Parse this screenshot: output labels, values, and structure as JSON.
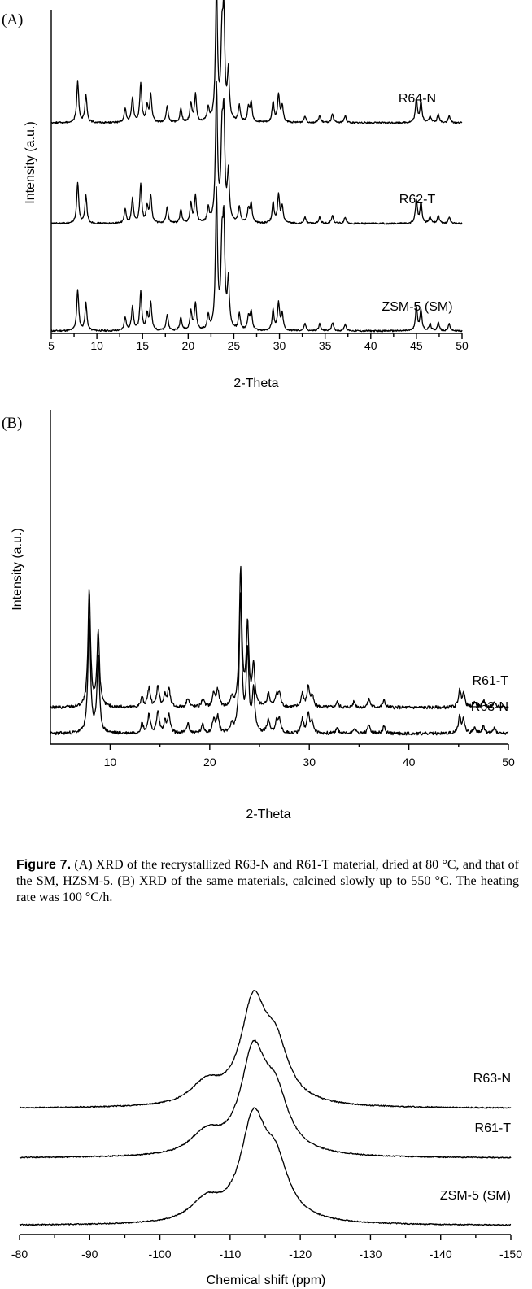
{
  "chart_data": [
    {
      "panel": "(A)",
      "type": "line",
      "xlabel": "2-Theta",
      "ylabel": "Intensity (a.u.)",
      "xlim": [
        5,
        50
      ],
      "xticks": [
        "5",
        "10",
        "15",
        "20",
        "25",
        "30",
        "35",
        "40",
        "45",
        "50"
      ],
      "series_order": [
        "ZSM-5 (SM)",
        "R62-T",
        "R64-N"
      ],
      "peaks": [
        [
          7.9,
          0.3
        ],
        [
          8.8,
          0.2
        ],
        [
          13.1,
          0.1
        ],
        [
          13.9,
          0.18
        ],
        [
          14.8,
          0.28
        ],
        [
          15.5,
          0.12
        ],
        [
          15.9,
          0.2
        ],
        [
          17.7,
          0.12
        ],
        [
          19.2,
          0.1
        ],
        [
          20.3,
          0.14
        ],
        [
          20.8,
          0.2
        ],
        [
          22.2,
          0.1
        ],
        [
          23.1,
          1.0
        ],
        [
          23.7,
          0.55
        ],
        [
          23.9,
          0.7
        ],
        [
          24.4,
          0.35
        ],
        [
          25.6,
          0.12
        ],
        [
          26.6,
          0.1
        ],
        [
          26.9,
          0.14
        ],
        [
          29.3,
          0.15
        ],
        [
          29.9,
          0.2
        ],
        [
          30.3,
          0.12
        ],
        [
          32.8,
          0.05
        ],
        [
          34.4,
          0.05
        ],
        [
          35.8,
          0.06
        ],
        [
          37.2,
          0.05
        ],
        [
          45.0,
          0.17
        ],
        [
          45.5,
          0.15
        ],
        [
          46.5,
          0.05
        ],
        [
          47.4,
          0.06
        ],
        [
          48.6,
          0.05
        ]
      ],
      "series": [
        {
          "name": "ZSM-5 (SM)",
          "offset": 0.0
        },
        {
          "name": "R62-T",
          "offset": 0.33
        },
        {
          "name": "R64-N",
          "offset": 0.64
        }
      ]
    },
    {
      "panel": "(B)",
      "type": "line",
      "xlabel": "2-Theta",
      "ylabel": "Intensity (a.u.)",
      "xlim": [
        4,
        50
      ],
      "xticks": [
        "10",
        "20",
        "30",
        "40",
        "50"
      ],
      "series_order": [
        "R63-N",
        "R61-T"
      ],
      "peaks": [
        [
          7.9,
          0.85
        ],
        [
          8.8,
          0.55
        ],
        [
          13.2,
          0.07
        ],
        [
          13.9,
          0.14
        ],
        [
          14.8,
          0.16
        ],
        [
          15.5,
          0.08
        ],
        [
          15.9,
          0.13
        ],
        [
          17.8,
          0.07
        ],
        [
          19.3,
          0.06
        ],
        [
          20.4,
          0.1
        ],
        [
          20.8,
          0.12
        ],
        [
          22.2,
          0.06
        ],
        [
          23.1,
          1.0
        ],
        [
          23.8,
          0.6
        ],
        [
          24.4,
          0.3
        ],
        [
          25.9,
          0.1
        ],
        [
          26.7,
          0.08
        ],
        [
          27.0,
          0.1
        ],
        [
          29.3,
          0.1
        ],
        [
          29.9,
          0.15
        ],
        [
          30.3,
          0.08
        ],
        [
          32.8,
          0.04
        ],
        [
          34.5,
          0.04
        ],
        [
          36.0,
          0.06
        ],
        [
          37.5,
          0.05
        ],
        [
          45.1,
          0.12
        ],
        [
          45.5,
          0.1
        ],
        [
          46.6,
          0.04
        ],
        [
          47.5,
          0.05
        ],
        [
          48.6,
          0.04
        ]
      ],
      "series": [
        {
          "name": "R63-N",
          "offset": 0.0
        },
        {
          "name": "R61-T",
          "offset": 0.08
        }
      ]
    },
    {
      "type": "line",
      "xlabel": "Chemical shift (ppm)",
      "ylabel": "",
      "xlim": [
        -80,
        -150
      ],
      "xticks": [
        "-80",
        "-90",
        "-100",
        "-110",
        "-120",
        "-130",
        "-140",
        "-150"
      ],
      "series_order": [
        "ZSM-5 (SM)",
        "R61-T",
        "R63-N"
      ],
      "peaks": [
        [
          -113.3,
          0.8
        ],
        [
          -116.5,
          0.42
        ],
        [
          -107.0,
          0.12
        ],
        [
          -105.5,
          0.06
        ]
      ],
      "series": [
        {
          "name": "ZSM-5 (SM)",
          "offset": 0.0
        },
        {
          "name": "R61-T",
          "offset": 0.23
        },
        {
          "name": "R63-N",
          "offset": 0.4
        }
      ]
    }
  ],
  "caption": {
    "figure_label": "Figure 7.",
    "text": " (A) XRD of the recrystallized R63-N and R61-T material, dried at 80 °C, and that of the SM, HZSM-5. (B) XRD of the same materials, calcined slowly up to 550 °C. The heating rate was 100 °C/h."
  }
}
